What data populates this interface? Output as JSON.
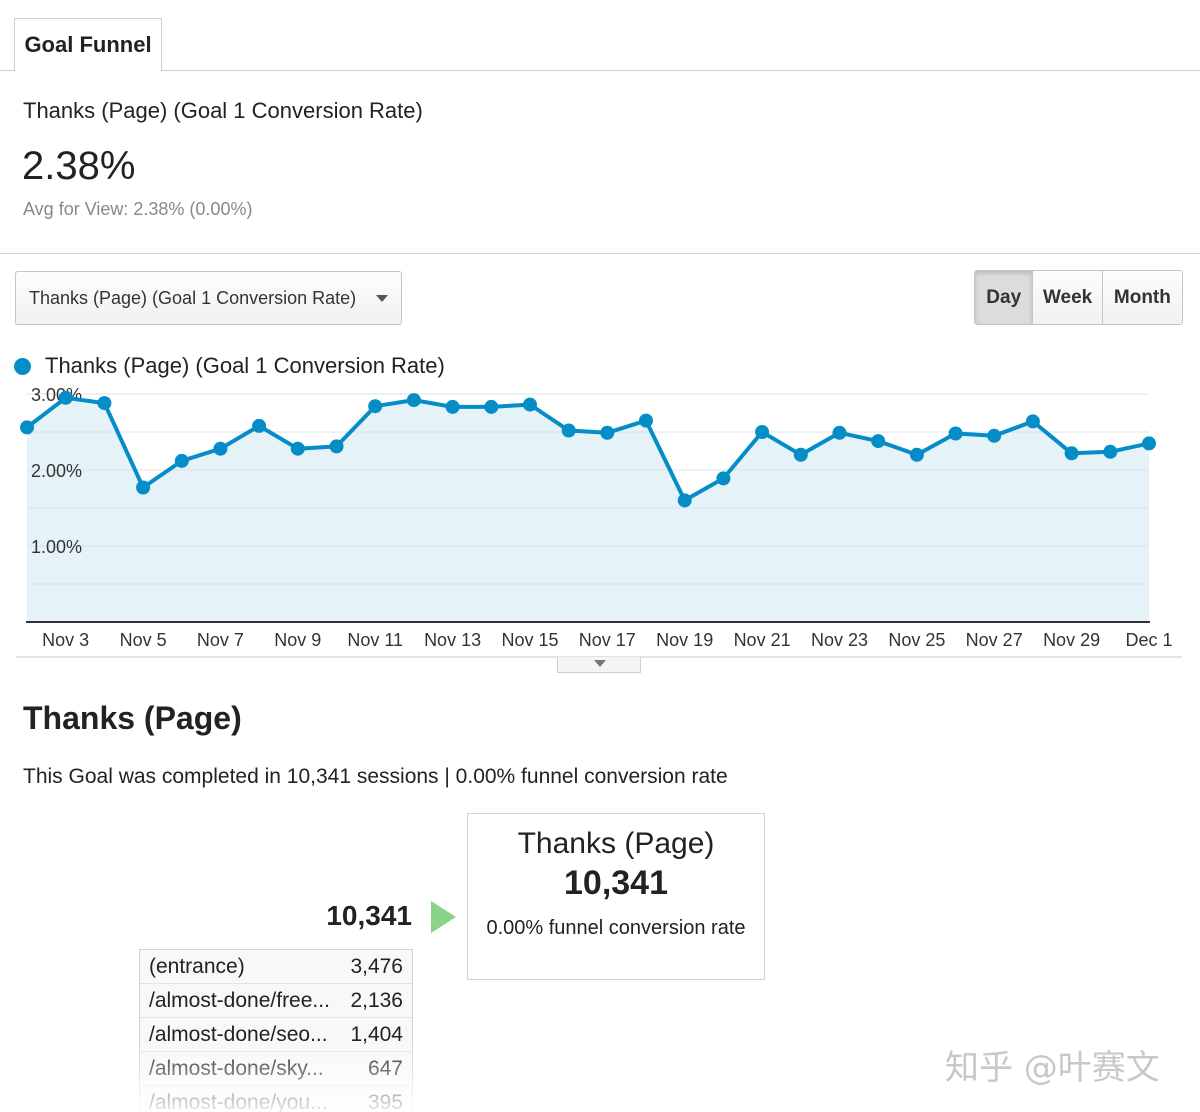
{
  "tabs": [
    {
      "label": "Goal Funnel"
    }
  ],
  "summary": {
    "metric_name": "Thanks (Page) (Goal 1 Conversion Rate)",
    "value": "2.38%",
    "avg": "Avg for View: 2.38% (0.00%)"
  },
  "metric_selector": {
    "label": "Thanks (Page) (Goal 1 Conversion Rate)"
  },
  "period": {
    "buttons": [
      "Day",
      "Week",
      "Month"
    ],
    "active": "Day"
  },
  "legend": {
    "label": "Thanks (Page) (Goal 1 Conversion Rate)"
  },
  "colors": {
    "series": "#058dc7",
    "area": "#e5f2f8",
    "grid": "#d9e4ea",
    "arrow": "#8ad38a"
  },
  "chart_data": {
    "type": "area",
    "series": [
      {
        "name": "Thanks (Page) (Goal 1 Conversion Rate)",
        "values": [
          2.56,
          2.95,
          2.88,
          1.77,
          2.12,
          2.28,
          2.58,
          2.28,
          2.31,
          2.84,
          2.92,
          2.83,
          2.83,
          2.86,
          2.52,
          2.49,
          2.65,
          1.6,
          1.89,
          2.5,
          2.2,
          2.49,
          2.38,
          2.2,
          2.48,
          2.45,
          2.64,
          2.22,
          2.24,
          2.35
        ]
      }
    ],
    "x_tick_labels": [
      "Nov 3",
      "Nov 5",
      "Nov 7",
      "Nov 9",
      "Nov 11",
      "Nov 13",
      "Nov 15",
      "Nov 17",
      "Nov 19",
      "Nov 21",
      "Nov 23",
      "Nov 25",
      "Nov 27",
      "Nov 29",
      "Dec 1"
    ],
    "y_tick_labels": [
      "3.00%",
      "2.00%",
      "1.00%"
    ],
    "y_ticks": [
      3,
      2,
      1
    ],
    "ylim": [
      0,
      3
    ],
    "grid": true,
    "legend": "top-left"
  },
  "goal": {
    "title": "Thanks (Page)",
    "summary": "This Goal was completed in 10,341 sessions | 0.00% funnel conversion rate",
    "entry_total": "10,341",
    "step": {
      "name": "Thanks (Page)",
      "count": "10,341",
      "rate": "0.00% funnel conversion rate"
    },
    "sources": [
      {
        "label": "(entrance)",
        "value": "3,476"
      },
      {
        "label": "/almost-done/free...",
        "value": "2,136"
      },
      {
        "label": "/almost-done/seo...",
        "value": "1,404"
      },
      {
        "label": "/almost-done/sky...",
        "value": "647"
      },
      {
        "label": "/almost-done/you...",
        "value": "395"
      }
    ]
  },
  "watermark": "知乎 @叶赛文"
}
